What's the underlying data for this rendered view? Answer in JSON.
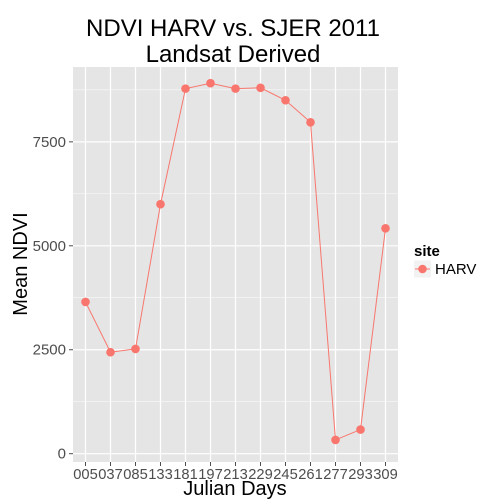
{
  "chart_data": {
    "type": "line",
    "title_line1": "NDVI HARV vs. SJER 2011",
    "title_line2": "Landsat Derived",
    "xlabel": "Julian Days",
    "ylabel": "Mean NDVI",
    "categories": [
      "005",
      "037",
      "085",
      "133",
      "181",
      "197",
      "213",
      "229",
      "245",
      "261",
      "277",
      "293",
      "309"
    ],
    "series": [
      {
        "name": "HARV",
        "color": "#f8766d",
        "values": [
          3650,
          2440,
          2520,
          6000,
          8780,
          8910,
          8780,
          8800,
          8500,
          7970,
          330,
          580,
          5420
        ]
      }
    ],
    "yticks": [
      0,
      2500,
      5000,
      7500
    ],
    "ytick_labels": [
      "0",
      "2500",
      "5000",
      "7500"
    ],
    "ylim": [
      -200,
      9300
    ],
    "grid": true,
    "panel_background": "#e5e5e5",
    "grid_color": "#ffffff",
    "legend": {
      "title": "site",
      "position": "right",
      "entries": [
        "HARV"
      ]
    }
  }
}
